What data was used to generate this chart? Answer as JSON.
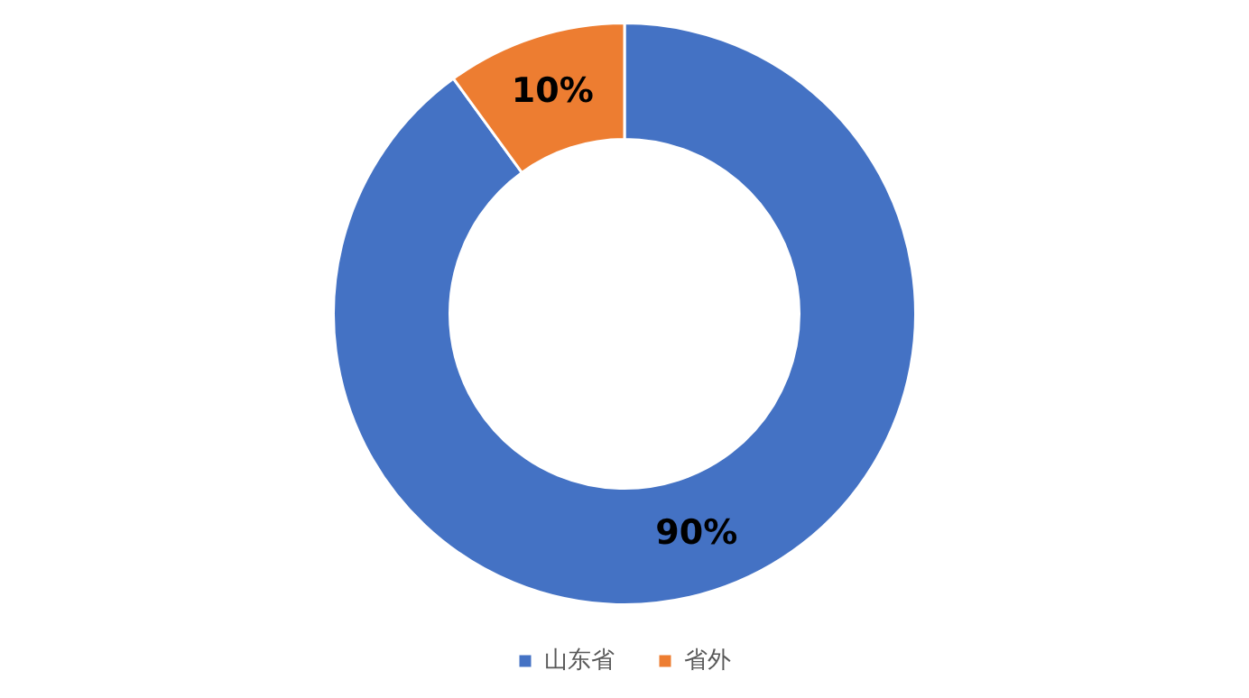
{
  "chart_data": {
    "type": "donut",
    "categories": [
      "山东省",
      "省外"
    ],
    "values": [
      90,
      10
    ],
    "colors": [
      "#4472c4",
      "#ed7d31"
    ],
    "value_labels": [
      "90%",
      "10%"
    ],
    "legend": "bottom"
  }
}
